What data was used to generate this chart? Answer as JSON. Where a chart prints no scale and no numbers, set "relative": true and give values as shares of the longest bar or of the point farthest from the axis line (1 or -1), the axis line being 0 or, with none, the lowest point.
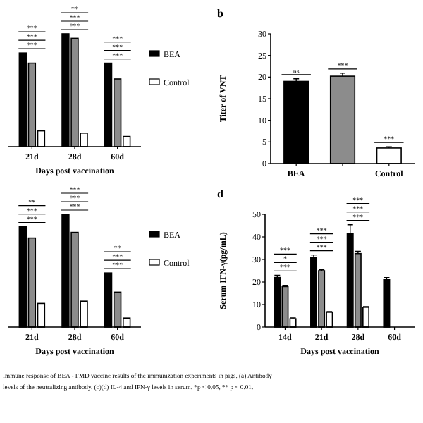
{
  "chart_data": [
    {
      "type": "bar",
      "relative": true,
      "categories": [
        "21d",
        "28d",
        "60d"
      ],
      "xlabel": "Days post vaccination",
      "legend": "right",
      "series": [
        {
          "name": "BEA",
          "color": "#000000",
          "values": [
            0.83,
            1,
            0.74
          ]
        },
        {
          "color": "#8c8c8c",
          "values": [
            0.74,
            0.96,
            0.6
          ]
        },
        {
          "name": "Control",
          "color": "#ffffff",
          "values": [
            0.14,
            0.12,
            0.09
          ]
        }
      ],
      "annotations": [
        "***",
        "***",
        "***",
        "**",
        "***",
        "***",
        "***",
        "***",
        "***"
      ]
    },
    {
      "type": "bar",
      "title": "b",
      "ylabel": "Titer of VNT",
      "categories": [
        "BEA",
        null,
        "Control"
      ],
      "values": [
        19,
        20.2,
        3.6
      ],
      "errors": [
        0.6,
        0.7,
        0.3
      ],
      "colors": [
        "#000000",
        "#8c8c8c",
        "#ffffff"
      ],
      "ylim": [
        0,
        30
      ],
      "yticks": [
        0,
        5,
        10,
        15,
        20,
        25,
        30
      ],
      "annotations": [
        "ns",
        "***",
        "***"
      ]
    },
    {
      "type": "bar",
      "relative": true,
      "categories": [
        "21d",
        "28d",
        "60d"
      ],
      "xlabel": "Days post vaccination",
      "legend": "right",
      "series": [
        {
          "name": "BEA",
          "color": "#000000",
          "values": [
            0.89,
            1,
            0.48
          ]
        },
        {
          "color": "#8c8c8c",
          "values": [
            0.79,
            0.84,
            0.31
          ]
        },
        {
          "name": "Control",
          "color": "#ffffff",
          "values": [
            0.21,
            0.23,
            0.08
          ]
        }
      ],
      "annotations": [
        "**",
        "***",
        "***",
        "***",
        "***",
        "***",
        "**",
        "***",
        "***"
      ]
    },
    {
      "type": "bar",
      "title": "d",
      "ylabel": "Serum IFN-γ(pg/mL)",
      "xlabel": "Days post vaccination",
      "categories": [
        "14d",
        "21d",
        "28d",
        "60d"
      ],
      "ylim": [
        0,
        50
      ],
      "yticks": [
        0,
        10,
        20,
        30,
        40,
        50
      ],
      "series": [
        {
          "color": "#000000",
          "values": [
            22,
            31,
            41.4,
            21
          ],
          "errors": [
            1,
            1,
            4,
            1
          ]
        },
        {
          "color": "#8c8c8c",
          "values": [
            18,
            25,
            32.6,
            null
          ],
          "errors": [
            0.5,
            0.5,
            1,
            null
          ]
        },
        {
          "color": "#ffffff",
          "values": [
            3.7,
            6.6,
            8.8,
            null
          ],
          "errors": [
            0.4,
            0.3,
            0.3,
            null
          ]
        }
      ],
      "annotations": [
        "***",
        "*",
        "***",
        "***",
        "***",
        "***",
        "***",
        "***",
        "***"
      ]
    },
    {
      "type": "other",
      "annotations": [
        "Immune response of BEA - FMD vaccine results of the immunization experiments in pigs. (a) Antibody",
        "levels of the neutralizing antibody. (c)(d) IL-4 and IFN-γ levels in serum. *p < 0.05, ** p < 0.01."
      ]
    }
  ]
}
